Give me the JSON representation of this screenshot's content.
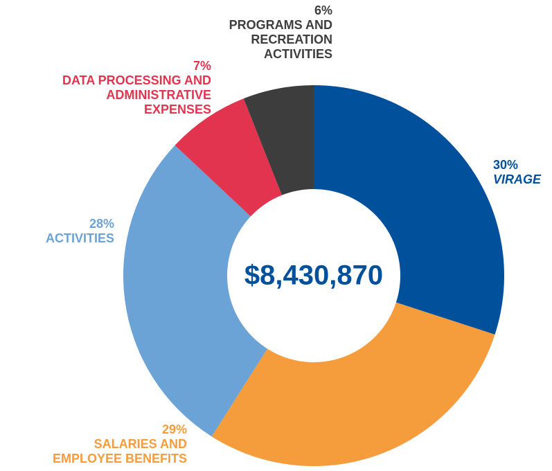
{
  "chart_data": {
    "type": "donut",
    "center_text": "$8,430,870",
    "categories": [
      "VIRAGE",
      "SALARIES AND EMPLOYEE BENEFITS",
      "ACTIVITIES",
      "DATA PROCESSING AND ADMINISTRATIVE EXPENSES",
      "PROGRAMS AND RECREATION ACTIVITIES"
    ],
    "values": [
      30,
      29,
      28,
      7,
      6
    ],
    "value_labels": [
      "30%",
      "29%",
      "28%",
      "7%",
      "6%"
    ],
    "colors": [
      "#00509b",
      "#f59d3d",
      "#6ba3d6",
      "#e3344f",
      "#3d3d3d"
    ]
  }
}
